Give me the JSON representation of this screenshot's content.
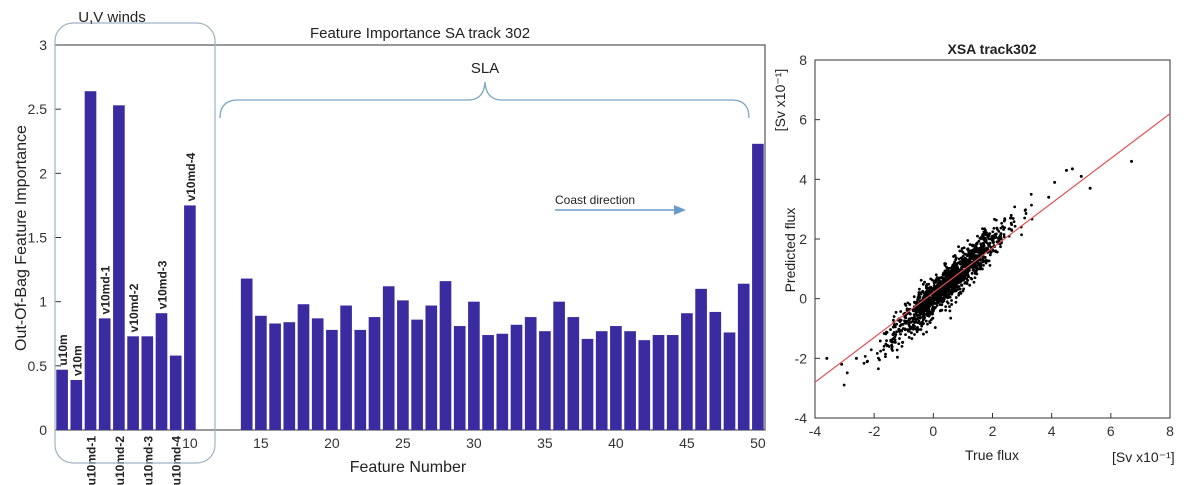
{
  "chart_data": [
    {
      "type": "bar",
      "title": "Feature Importance SA track 302",
      "xlabel": "Feature Number",
      "ylabel": "Out-Of-Bag Feature Importance",
      "xlim": [
        0.5,
        50.5
      ],
      "ylim": [
        0,
        3
      ],
      "xticks": [
        10,
        15,
        20,
        25,
        30,
        35,
        40,
        45,
        50
      ],
      "yticks": [
        0,
        0.5,
        1,
        1.5,
        2,
        2.5,
        3
      ],
      "ytick_labels": [
        "0",
        "0.5",
        "1",
        "1.5",
        "2",
        "2.5",
        "3"
      ],
      "bar_color": "#3b2ba0",
      "x": [
        1,
        2,
        3,
        4,
        5,
        6,
        7,
        8,
        9,
        10,
        11,
        12,
        13,
        14,
        15,
        16,
        17,
        18,
        19,
        20,
        21,
        22,
        23,
        24,
        25,
        26,
        27,
        28,
        29,
        30,
        31,
        32,
        33,
        34,
        35,
        36,
        37,
        38,
        39,
        40,
        41,
        42,
        43,
        44,
        45,
        46,
        47,
        48,
        49,
        50
      ],
      "values": [
        0.47,
        0.39,
        2.64,
        0.87,
        2.53,
        0.73,
        0.73,
        0.91,
        0.58,
        1.75,
        0,
        0,
        0,
        1.18,
        0.89,
        0.83,
        0.84,
        0.98,
        0.87,
        0.78,
        0.97,
        0.78,
        0.88,
        1.12,
        1.01,
        0.86,
        0.97,
        1.16,
        0.81,
        1.0,
        0.74,
        0.75,
        0.82,
        0.88,
        0.77,
        1.0,
        0.88,
        0.71,
        0.77,
        0.81,
        0.77,
        0.7,
        0.74,
        0.74,
        0.91,
        1.1,
        0.92,
        0.76,
        1.14,
        2.23
      ],
      "bar_labels": [
        {
          "x": 1,
          "text": "u10m"
        },
        {
          "x": 2,
          "text": "v10m"
        },
        {
          "x": 4,
          "text": "v10md-1"
        },
        {
          "x": 6,
          "text": "v10md-2"
        },
        {
          "x": 8,
          "text": "v10md-3"
        },
        {
          "x": 10,
          "text": "v10md-4"
        }
      ],
      "below_axis_labels": [
        {
          "x": 3,
          "text": "u10md-1"
        },
        {
          "x": 5,
          "text": "u10md-2"
        },
        {
          "x": 7,
          "text": "u10md-3"
        },
        {
          "x": 9,
          "text": "u10md-4"
        }
      ],
      "annotations": {
        "uv_winds": "U,V winds",
        "sla": "SLA",
        "coast_direction": "Coast direction"
      }
    },
    {
      "type": "scatter",
      "title": "XSA track302",
      "xlabel": "True flux",
      "ylabel": "Predicted flux",
      "xunit": "[Sv x10⁻¹]",
      "yunit": "[Sv x10⁻¹]",
      "xlim": [
        -4,
        8
      ],
      "ylim": [
        -4,
        8
      ],
      "xticks": [
        -4,
        -2,
        0,
        2,
        4,
        6,
        8
      ],
      "yticks": [
        -4,
        -2,
        0,
        2,
        4,
        6,
        8
      ],
      "point_color": "#000000",
      "fit_line": {
        "x": [
          -4,
          8
        ],
        "y": [
          -2.8,
          6.2
        ],
        "color": "#e05050"
      },
      "cloud": {
        "center": [
          0.5,
          0.5
        ],
        "slope": 0.98,
        "spread_along": 1.3,
        "spread_across": 0.22,
        "count": 1400
      },
      "outliers": [
        [
          6.7,
          4.6
        ],
        [
          4.5,
          4.3
        ],
        [
          4.7,
          4.35
        ],
        [
          5.3,
          3.7
        ],
        [
          5.0,
          4.1
        ],
        [
          4.1,
          3.9
        ],
        [
          -3.6,
          -2.0
        ],
        [
          -3.1,
          -2.2
        ],
        [
          -2.6,
          -2.0
        ],
        [
          3.9,
          3.4
        ]
      ]
    }
  ]
}
